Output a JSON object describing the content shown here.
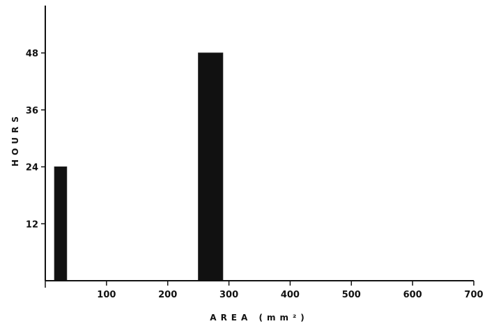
{
  "chart_data": {
    "type": "bar",
    "xlabel": "AREA (mm²)",
    "ylabel": "HOURS",
    "xlim": [
      0,
      700
    ],
    "ylim": [
      0,
      60
    ],
    "xticks": [
      100,
      200,
      300,
      400,
      500,
      600,
      700
    ],
    "yticks": [
      12,
      24,
      36,
      48
    ],
    "grid": false,
    "bars": [
      {
        "x_start": 15,
        "x_end": 35,
        "value": 24
      },
      {
        "x_start": 250,
        "x_end": 290,
        "value": 48
      }
    ],
    "colors": {
      "bar": "#111111",
      "axis": "#111111"
    }
  }
}
